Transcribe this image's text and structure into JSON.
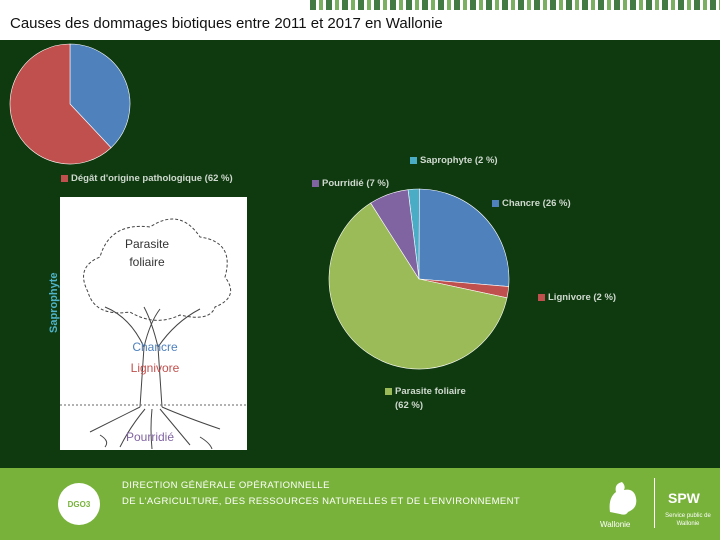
{
  "header": {
    "title": "Causes des dommages biotiques entre 2011 et 2017 en Wallonie"
  },
  "chart_data": [
    {
      "type": "pie",
      "slices": [
        {
          "label": "Dégât d'origine pathologique (62 %)",
          "value": 62,
          "color": "#c0504d"
        },
        {
          "label": "",
          "value": 38,
          "color": "#4f81bd"
        }
      ],
      "legend_position": "bottom"
    },
    {
      "type": "pie",
      "slices": [
        {
          "label": "Saprophyte (2 %)",
          "value": 2,
          "color": "#4bacc6"
        },
        {
          "label": "Chancre (26 %)",
          "value": 26,
          "color": "#4f81bd"
        },
        {
          "label": "Lignivore (2 %)",
          "value": 2,
          "color": "#c0504d"
        },
        {
          "label": "Parasite foliaire (62 %)",
          "value": 62,
          "color": "#9bbb59"
        },
        {
          "label": "Pourridié (7 %)",
          "value": 7,
          "color": "#8064a2"
        }
      ]
    }
  ],
  "diagram": {
    "labels": {
      "parasite": "Parasite foliaire",
      "saprophyte": "Saprophyte",
      "chancre": "Chancre",
      "lignivore": "Lignivore",
      "pourridie": "Pourridié"
    }
  },
  "footer": {
    "logo_text": "DGO3",
    "line1": "DIRECTION GÉNÉRALE OPÉRATIONNELLE",
    "line2": "DE L'AGRICULTURE, DES RESSOURCES NATURELLES ET DE L'ENVIRONNEMENT",
    "wallonie": "Wallonie",
    "spw": "SPW",
    "spw_sub": "Service public de Wallonie"
  }
}
